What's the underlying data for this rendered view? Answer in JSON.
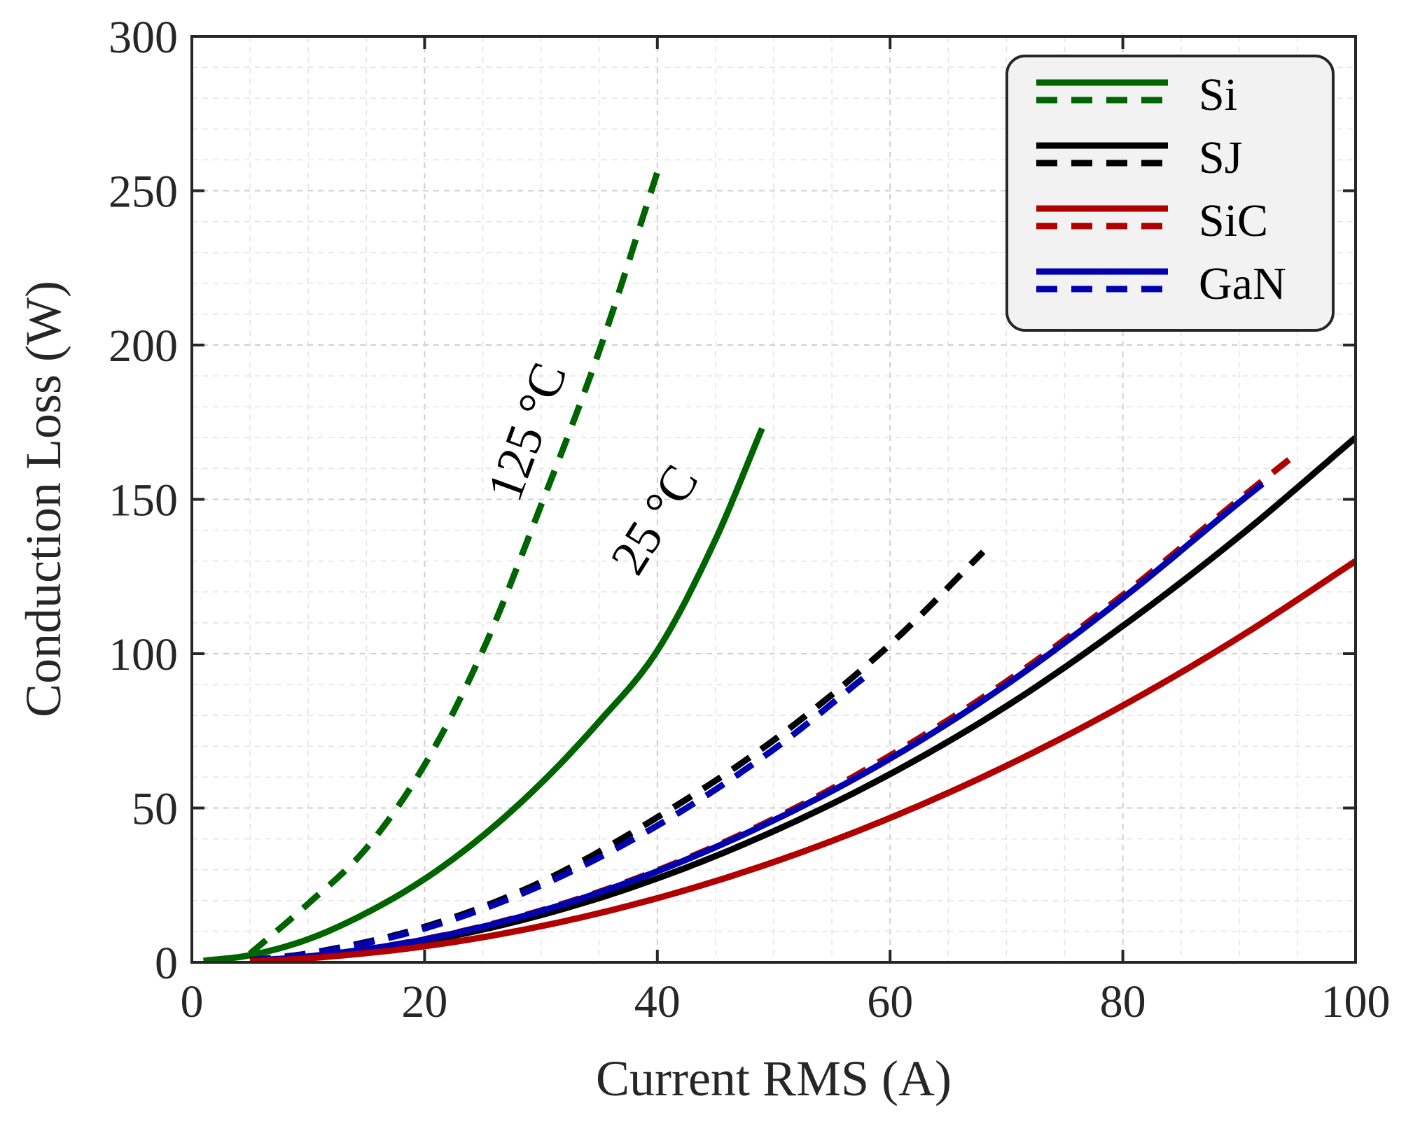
{
  "chart_data": {
    "type": "line",
    "title": "",
    "xlabel": "Current RMS (A)",
    "ylabel": "Conduction Loss (W)",
    "xlim": [
      0,
      100
    ],
    "ylim": [
      0,
      300
    ],
    "xticks": [
      0,
      20,
      40,
      60,
      80,
      100
    ],
    "yticks": [
      0,
      50,
      100,
      150,
      200,
      250,
      300
    ],
    "grid": true,
    "legend_position": "top-right",
    "legend": [
      {
        "label": "Si",
        "color": "#006400"
      },
      {
        "label": "SJ",
        "color": "#000000"
      },
      {
        "label": "SiC",
        "color": "#B00000"
      },
      {
        "label": "GaN",
        "color": "#0000B0"
      }
    ],
    "annotations": [
      {
        "text": "125 °C",
        "x": 33,
        "y": 185,
        "angle": -70
      },
      {
        "text": "25 °C",
        "x": 42,
        "y": 130,
        "angle": -58
      }
    ],
    "series": [
      {
        "name": "Si 25 °C",
        "device": "Si",
        "temperature": "25 °C",
        "color": "#006400",
        "dash": "solid",
        "x": [
          1,
          5,
          10,
          15,
          20,
          25,
          30,
          35,
          40,
          45,
          49
        ],
        "y": [
          0.5,
          2.3,
          7.5,
          16,
          27,
          41,
          58,
          78,
          101,
          137,
          173
        ]
      },
      {
        "name": "Si 125 °C",
        "device": "Si",
        "temperature": "125 °C",
        "color": "#006400",
        "dash": "dashed",
        "x": [
          5,
          10,
          15,
          20,
          25,
          30,
          35,
          40
        ],
        "y": [
          2.8,
          19,
          37,
          64,
          101,
          148,
          198,
          256
        ]
      },
      {
        "name": "SJ 25 °C",
        "device": "SJ",
        "temperature": "25 °C",
        "color": "#000000",
        "dash": "solid",
        "x": [
          5,
          10,
          20,
          30,
          40,
          50,
          60,
          70,
          80,
          90,
          100
        ],
        "y": [
          0.4,
          1.7,
          6.8,
          15.3,
          27.2,
          42.5,
          61,
          83,
          109,
          138,
          170
        ]
      },
      {
        "name": "SJ 125 °C",
        "device": "SJ",
        "temperature": "125 °C",
        "color": "#000000",
        "dash": "dashed",
        "x": [
          5,
          10,
          20,
          30,
          40,
          50,
          60,
          68
        ],
        "y": [
          0.7,
          2.9,
          11.5,
          26,
          47,
          72,
          103,
          133
        ]
      },
      {
        "name": "SiC 25 °C",
        "device": "SiC",
        "temperature": "25 °C",
        "color": "#B00000",
        "dash": "solid",
        "x": [
          5,
          10,
          20,
          30,
          40,
          50,
          60,
          70,
          80,
          90,
          100
        ],
        "y": [
          0.3,
          1.3,
          5.2,
          11.7,
          20.8,
          32.5,
          46.8,
          63.7,
          83.2,
          105.3,
          130
        ]
      },
      {
        "name": "SiC 125 °C",
        "device": "SiC",
        "temperature": "125 °C",
        "color": "#B00000",
        "dash": "dashed",
        "x": [
          5,
          10,
          20,
          30,
          40,
          50,
          60,
          70,
          80,
          90,
          95
        ],
        "y": [
          0.5,
          1.9,
          7.5,
          16.8,
          29.8,
          46.5,
          67,
          91,
          119,
          150,
          165
        ]
      },
      {
        "name": "GaN 25 °C",
        "device": "GaN",
        "temperature": "25 °C",
        "color": "#0000B0",
        "dash": "solid",
        "x": [
          5,
          10,
          20,
          30,
          40,
          50,
          60,
          70,
          80,
          90,
          92
        ],
        "y": [
          0.5,
          1.9,
          7.4,
          16.6,
          29.5,
          46,
          66,
          90,
          118,
          149,
          155
        ]
      },
      {
        "name": "GaN 125 °C",
        "device": "GaN",
        "temperature": "125 °C",
        "color": "#0000B0",
        "dash": "dashed",
        "x": [
          5,
          10,
          20,
          30,
          40,
          50,
          58
        ],
        "y": [
          0.7,
          2.8,
          11,
          24.9,
          44.3,
          69,
          93
        ]
      }
    ]
  }
}
